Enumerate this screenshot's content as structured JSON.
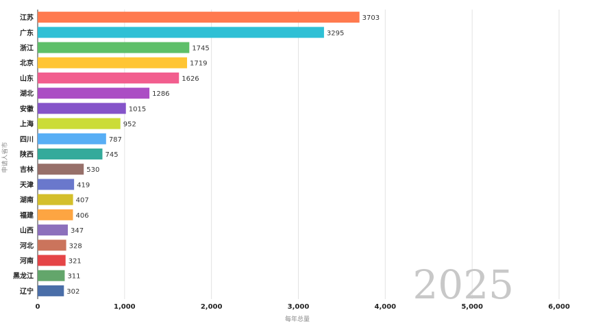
{
  "chart_data": {
    "type": "bar",
    "orientation": "horizontal",
    "categories": [
      "江苏",
      "广东",
      "浙江",
      "北京",
      "山东",
      "湖北",
      "安徽",
      "上海",
      "四川",
      "陕西",
      "吉林",
      "天津",
      "湖南",
      "福建",
      "山西",
      "河北",
      "河南",
      "黑龙江",
      "辽宁"
    ],
    "values": [
      3703,
      3295,
      1745,
      1719,
      1626,
      1286,
      1015,
      952,
      787,
      745,
      530,
      419,
      407,
      406,
      347,
      328,
      321,
      311,
      302
    ],
    "value_labels": [
      "3703",
      "3295",
      "1745",
      "1719",
      "1626",
      "1286",
      "1015",
      "952",
      "787",
      "745",
      "530",
      "419",
      "407",
      "406",
      "347",
      "328",
      "321",
      "311",
      "302"
    ],
    "colors": [
      "#ff7a4f",
      "#2fc0d5",
      "#5ebf69",
      "#ffc533",
      "#f25e8e",
      "#ab4ec4",
      "#8554c9",
      "#cbdc37",
      "#58aef5",
      "#34aa9b",
      "#97706a",
      "#6a78cc",
      "#d4bf2b",
      "#fda542",
      "#8c70bc",
      "#cb745c",
      "#e54547",
      "#63a66b",
      "#4a6ea8"
    ],
    "xlim": [
      0,
      6000
    ],
    "xticks": [
      0,
      1000,
      2000,
      3000,
      4000,
      5000,
      6000
    ],
    "xtick_labels": [
      "0",
      "1,000",
      "2,000",
      "3,000",
      "4,000",
      "5,000",
      "6,000"
    ],
    "xlabel": "每年总量",
    "ylabel": "申请人省市",
    "year": "2025",
    "grid": true
  }
}
